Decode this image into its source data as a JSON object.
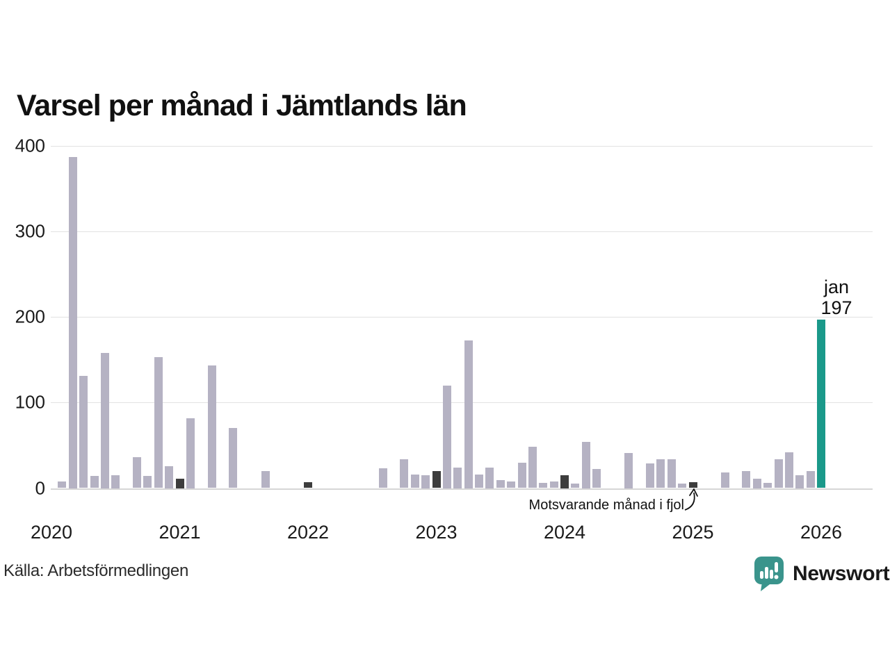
{
  "title": "Varsel per månad i Jämtlands län",
  "source": "Källa: Arbetsförmedlingen",
  "brand": {
    "name": "Newsworthy"
  },
  "annotation": {
    "text": "Motsvarande månad i fjol"
  },
  "highlight_label": {
    "month": "jan",
    "value": "197"
  },
  "colors": {
    "bar": "#b5b2c3",
    "prev_year": "#3d3d3d",
    "highlight": "#1a998a",
    "brand": "#3a948c",
    "grid": "#e2e2e2",
    "text": "#1a1a1a"
  },
  "chart_data": {
    "type": "bar",
    "title": "Varsel per månad i Jämtlands län",
    "xlabel": "",
    "ylabel": "",
    "ylim": [
      0,
      400
    ],
    "yticks": [
      0,
      100,
      200,
      300,
      400
    ],
    "year_ticks": [
      "2020",
      "2021",
      "2022",
      "2023",
      "2024",
      "2025",
      "2026"
    ],
    "grid": true,
    "legend_note": "dark bars mark the corresponding month (January) of earlier years; teal bar is the current month",
    "series": [
      {
        "month": "2020-01",
        "value": 0,
        "kind": "normal"
      },
      {
        "month": "2020-02",
        "value": 8,
        "kind": "normal"
      },
      {
        "month": "2020-03",
        "value": 387,
        "kind": "normal"
      },
      {
        "month": "2020-04",
        "value": 131,
        "kind": "normal"
      },
      {
        "month": "2020-05",
        "value": 14,
        "kind": "normal"
      },
      {
        "month": "2020-06",
        "value": 158,
        "kind": "normal"
      },
      {
        "month": "2020-07",
        "value": 15,
        "kind": "normal"
      },
      {
        "month": "2020-08",
        "value": 0,
        "kind": "normal"
      },
      {
        "month": "2020-09",
        "value": 36,
        "kind": "normal"
      },
      {
        "month": "2020-10",
        "value": 14,
        "kind": "normal"
      },
      {
        "month": "2020-11",
        "value": 153,
        "kind": "normal"
      },
      {
        "month": "2020-12",
        "value": 26,
        "kind": "normal"
      },
      {
        "month": "2021-01",
        "value": 11,
        "kind": "prev_year"
      },
      {
        "month": "2021-02",
        "value": 82,
        "kind": "normal"
      },
      {
        "month": "2021-03",
        "value": 0,
        "kind": "normal"
      },
      {
        "month": "2021-04",
        "value": 143,
        "kind": "normal"
      },
      {
        "month": "2021-05",
        "value": 0,
        "kind": "normal"
      },
      {
        "month": "2021-06",
        "value": 70,
        "kind": "normal"
      },
      {
        "month": "2021-07",
        "value": 0,
        "kind": "normal"
      },
      {
        "month": "2021-08",
        "value": 0,
        "kind": "normal"
      },
      {
        "month": "2021-09",
        "value": 20,
        "kind": "normal"
      },
      {
        "month": "2021-10",
        "value": 0,
        "kind": "normal"
      },
      {
        "month": "2021-11",
        "value": 0,
        "kind": "normal"
      },
      {
        "month": "2021-12",
        "value": 0,
        "kind": "normal"
      },
      {
        "month": "2022-01",
        "value": 7,
        "kind": "prev_year"
      },
      {
        "month": "2022-02",
        "value": 0,
        "kind": "normal"
      },
      {
        "month": "2022-03",
        "value": 0,
        "kind": "normal"
      },
      {
        "month": "2022-04",
        "value": 0,
        "kind": "normal"
      },
      {
        "month": "2022-05",
        "value": 0,
        "kind": "normal"
      },
      {
        "month": "2022-06",
        "value": 0,
        "kind": "normal"
      },
      {
        "month": "2022-07",
        "value": 0,
        "kind": "normal"
      },
      {
        "month": "2022-08",
        "value": 23,
        "kind": "normal"
      },
      {
        "month": "2022-09",
        "value": 0,
        "kind": "normal"
      },
      {
        "month": "2022-10",
        "value": 34,
        "kind": "normal"
      },
      {
        "month": "2022-11",
        "value": 16,
        "kind": "normal"
      },
      {
        "month": "2022-12",
        "value": 15,
        "kind": "normal"
      },
      {
        "month": "2023-01",
        "value": 20,
        "kind": "prev_year"
      },
      {
        "month": "2023-02",
        "value": 120,
        "kind": "normal"
      },
      {
        "month": "2023-03",
        "value": 24,
        "kind": "normal"
      },
      {
        "month": "2023-04",
        "value": 173,
        "kind": "normal"
      },
      {
        "month": "2023-05",
        "value": 16,
        "kind": "normal"
      },
      {
        "month": "2023-06",
        "value": 24,
        "kind": "normal"
      },
      {
        "month": "2023-07",
        "value": 9,
        "kind": "normal"
      },
      {
        "month": "2023-08",
        "value": 8,
        "kind": "normal"
      },
      {
        "month": "2023-09",
        "value": 30,
        "kind": "normal"
      },
      {
        "month": "2023-10",
        "value": 48,
        "kind": "normal"
      },
      {
        "month": "2023-11",
        "value": 6,
        "kind": "normal"
      },
      {
        "month": "2023-12",
        "value": 8,
        "kind": "normal"
      },
      {
        "month": "2024-01",
        "value": 15,
        "kind": "prev_year"
      },
      {
        "month": "2024-02",
        "value": 5,
        "kind": "normal"
      },
      {
        "month": "2024-03",
        "value": 54,
        "kind": "normal"
      },
      {
        "month": "2024-04",
        "value": 22,
        "kind": "normal"
      },
      {
        "month": "2024-05",
        "value": 0,
        "kind": "normal"
      },
      {
        "month": "2024-06",
        "value": 0,
        "kind": "normal"
      },
      {
        "month": "2024-07",
        "value": 41,
        "kind": "normal"
      },
      {
        "month": "2024-08",
        "value": 0,
        "kind": "normal"
      },
      {
        "month": "2024-09",
        "value": 29,
        "kind": "normal"
      },
      {
        "month": "2024-10",
        "value": 34,
        "kind": "normal"
      },
      {
        "month": "2024-11",
        "value": 34,
        "kind": "normal"
      },
      {
        "month": "2024-12",
        "value": 5,
        "kind": "normal"
      },
      {
        "month": "2025-01",
        "value": 7,
        "kind": "prev_year"
      },
      {
        "month": "2025-02",
        "value": 0,
        "kind": "normal"
      },
      {
        "month": "2025-03",
        "value": 0,
        "kind": "normal"
      },
      {
        "month": "2025-04",
        "value": 18,
        "kind": "normal"
      },
      {
        "month": "2025-05",
        "value": 0,
        "kind": "normal"
      },
      {
        "month": "2025-06",
        "value": 20,
        "kind": "normal"
      },
      {
        "month": "2025-07",
        "value": 11,
        "kind": "normal"
      },
      {
        "month": "2025-08",
        "value": 6,
        "kind": "normal"
      },
      {
        "month": "2025-09",
        "value": 34,
        "kind": "normal"
      },
      {
        "month": "2025-10",
        "value": 42,
        "kind": "normal"
      },
      {
        "month": "2025-11",
        "value": 15,
        "kind": "normal"
      },
      {
        "month": "2025-12",
        "value": 20,
        "kind": "normal"
      },
      {
        "month": "2026-01",
        "value": 197,
        "kind": "current"
      }
    ]
  }
}
